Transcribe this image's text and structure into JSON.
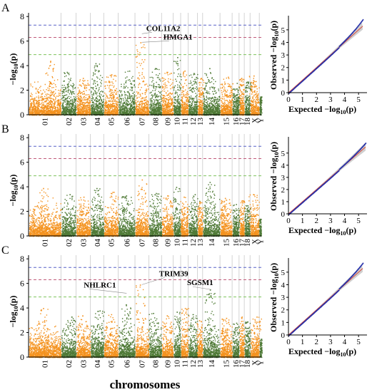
{
  "xlabel": "chromosomes",
  "manhattan": {
    "ylabel_main": "−log",
    "ylabel_sub": "10",
    "ylabel_arg": "(p)",
    "yticks": [
      0,
      2,
      4,
      6,
      8
    ],
    "ylim": [
      0,
      8.3
    ],
    "chromosomes": [
      "01",
      "02",
      "03",
      "04",
      "05",
      "06",
      "07",
      "08",
      "09",
      "10",
      "11",
      "12",
      "13",
      "14",
      "15",
      "16",
      "17",
      "18",
      "X",
      "Y"
    ],
    "chromosome_sizes": [
      5.6,
      2.6,
      2.5,
      2.3,
      2.5,
      2.9,
      2.4,
      2.2,
      2.0,
      1.3,
      1.3,
      1.6,
      0.9,
      3.0,
      2.1,
      1.2,
      0.9,
      1.0,
      1.6,
      0.35
    ],
    "colors": [
      "#f4921e",
      "#4f7a36"
    ],
    "threshold_colors": [
      "#5862c7",
      "#c05b7a",
      "#7fc35d"
    ]
  },
  "qq": {
    "xlabel_main": "Expected −log",
    "xlabel_sub": "10",
    "xlabel_arg": "(p)",
    "ylabel_main": "Observed −log",
    "ylabel_sub": "10",
    "ylabel_arg": "(p)",
    "xticks": [
      0,
      1,
      2,
      3,
      4,
      5
    ],
    "yticks": [
      0,
      1,
      2,
      3,
      4,
      5
    ],
    "point_color": "#1f2aa8",
    "line_color": "#d94c3d"
  },
  "chart_data": [
    {
      "type": "scatter",
      "panel": "A",
      "subtype": "manhattan",
      "thresholds": [
        7.3,
        6.3,
        4.9
      ],
      "peaks": [
        {
          "chrom": "01",
          "value": 4.4
        },
        {
          "chrom": "02",
          "value": 3.5
        },
        {
          "chrom": "03",
          "value": 3.0
        },
        {
          "chrom": "04",
          "value": 4.2
        },
        {
          "chrom": "05",
          "value": 3.3
        },
        {
          "chrom": "06",
          "value": 3.6
        },
        {
          "chrom": "07",
          "value": 5.9
        },
        {
          "chrom": "08",
          "value": 3.8
        },
        {
          "chrom": "09",
          "value": 3.5
        },
        {
          "chrom": "10",
          "value": 4.7
        },
        {
          "chrom": "11",
          "value": 3.6
        },
        {
          "chrom": "12",
          "value": 3.4
        },
        {
          "chrom": "13",
          "value": 3.0
        },
        {
          "chrom": "14",
          "value": 3.8
        },
        {
          "chrom": "15",
          "value": 3.1
        },
        {
          "chrom": "16",
          "value": 2.6
        },
        {
          "chrom": "17",
          "value": 3.0
        },
        {
          "chrom": "18",
          "value": 2.7
        },
        {
          "chrom": "X",
          "value": 3.2
        },
        {
          "chrom": "Y",
          "value": 1.5
        }
      ],
      "annotations": [
        {
          "text": "COL11A2",
          "chrom": "07",
          "value": 6.6
        },
        {
          "text": "HMGA1",
          "chrom": "07",
          "value": 5.9
        }
      ],
      "qq_max_expected": 5.3,
      "qq_max_observed": 5.8,
      "qq_ylim": [
        0,
        5.9
      ]
    },
    {
      "type": "scatter",
      "panel": "B",
      "subtype": "manhattan",
      "thresholds": [
        7.3,
        6.3,
        4.9
      ],
      "peaks": [
        {
          "chrom": "01",
          "value": 3.9
        },
        {
          "chrom": "02",
          "value": 3.4
        },
        {
          "chrom": "03",
          "value": 3.2
        },
        {
          "chrom": "04",
          "value": 3.9
        },
        {
          "chrom": "05",
          "value": 3.6
        },
        {
          "chrom": "06",
          "value": 3.3
        },
        {
          "chrom": "07",
          "value": 4.6
        },
        {
          "chrom": "08",
          "value": 3.5
        },
        {
          "chrom": "09",
          "value": 3.3
        },
        {
          "chrom": "10",
          "value": 4.0
        },
        {
          "chrom": "11",
          "value": 3.2
        },
        {
          "chrom": "12",
          "value": 3.4
        },
        {
          "chrom": "13",
          "value": 2.8
        },
        {
          "chrom": "14",
          "value": 4.4
        },
        {
          "chrom": "15",
          "value": 3.1
        },
        {
          "chrom": "16",
          "value": 2.6
        },
        {
          "chrom": "17",
          "value": 2.9
        },
        {
          "chrom": "18",
          "value": 2.5
        },
        {
          "chrom": "X",
          "value": 3.4
        },
        {
          "chrom": "Y",
          "value": 1.4
        }
      ],
      "annotations": [],
      "qq_max_expected": 5.5,
      "qq_max_observed": 5.8,
      "qq_ylim": [
        0,
        6.1
      ]
    },
    {
      "type": "scatter",
      "panel": "C",
      "subtype": "manhattan",
      "thresholds": [
        7.3,
        6.3,
        4.9
      ],
      "peaks": [
        {
          "chrom": "01",
          "value": 4.0
        },
        {
          "chrom": "02",
          "value": 3.3
        },
        {
          "chrom": "03",
          "value": 3.4
        },
        {
          "chrom": "04",
          "value": 3.8
        },
        {
          "chrom": "05",
          "value": 3.5
        },
        {
          "chrom": "06",
          "value": 4.3
        },
        {
          "chrom": "07",
          "value": 5.9
        },
        {
          "chrom": "08",
          "value": 3.6
        },
        {
          "chrom": "09",
          "value": 3.4
        },
        {
          "chrom": "10",
          "value": 3.7
        },
        {
          "chrom": "11",
          "value": 4.0
        },
        {
          "chrom": "12",
          "value": 3.5
        },
        {
          "chrom": "13",
          "value": 3.0
        },
        {
          "chrom": "14",
          "value": 5.5
        },
        {
          "chrom": "15",
          "value": 3.2
        },
        {
          "chrom": "16",
          "value": 2.8
        },
        {
          "chrom": "17",
          "value": 3.3
        },
        {
          "chrom": "18",
          "value": 2.9
        },
        {
          "chrom": "X",
          "value": 3.3
        },
        {
          "chrom": "Y",
          "value": 1.5
        }
      ],
      "annotations": [
        {
          "text": "TRIM39",
          "chrom": "07",
          "value": 5.9
        },
        {
          "text": "NHLRC1",
          "chrom": "06",
          "value": 5.2
        },
        {
          "text": "SGSM1",
          "chrom": "14",
          "value": 5.5
        }
      ],
      "qq_max_expected": 5.3,
      "qq_max_observed": 5.7,
      "qq_ylim": [
        0,
        5.9
      ]
    }
  ]
}
